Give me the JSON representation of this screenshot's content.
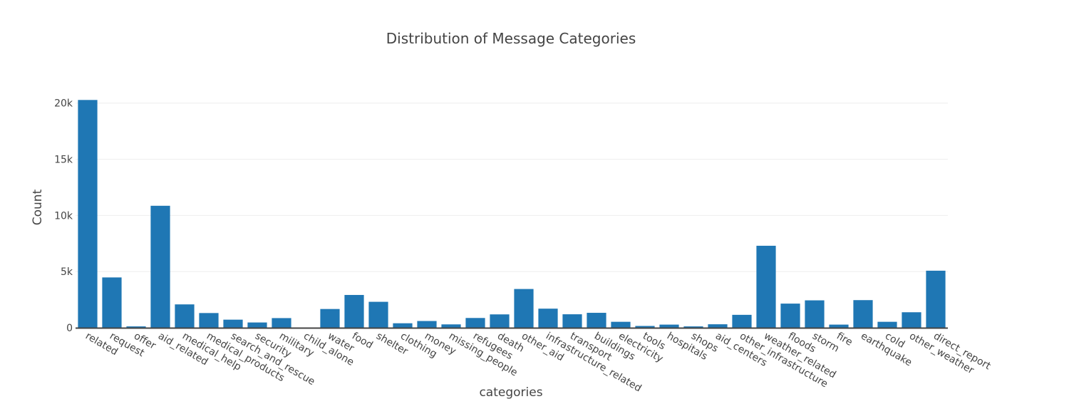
{
  "chart_data": {
    "type": "bar",
    "title": "Distribution of Message Categories",
    "xlabel": "categories",
    "ylabel": "Count",
    "ylim": [
      0,
      20300
    ],
    "yticks": [
      0,
      5000,
      10000,
      15000,
      20000
    ],
    "ytick_labels": [
      "0",
      "5k",
      "10k",
      "15k",
      "20k"
    ],
    "grid": true,
    "bar_color": "#1f77b4",
    "categories": [
      "related",
      "request",
      "offer",
      "aid_related",
      "medical_help",
      "medical_products",
      "search_and_rescue",
      "security",
      "military",
      "child_alone",
      "water",
      "food",
      "shelter",
      "clothing",
      "money",
      "missing_people",
      "refugees",
      "death",
      "other_aid",
      "infrastructure_related",
      "transport",
      "buildings",
      "electricity",
      "tools",
      "hospitals",
      "shops",
      "aid_centers",
      "other_infrastructure",
      "weather_related",
      "floods",
      "storm",
      "fire",
      "earthquake",
      "cold",
      "other_weather",
      "direct_report"
    ],
    "values": [
      20280,
      4480,
      120,
      10860,
      2080,
      1310,
      720,
      470,
      860,
      0,
      1670,
      2920,
      2310,
      400,
      600,
      300,
      870,
      1190,
      3450,
      1700,
      1200,
      1330,
      530,
      160,
      280,
      120,
      310,
      1150,
      7300,
      2150,
      2440,
      280,
      2460,
      530,
      1380,
      5080
    ]
  }
}
